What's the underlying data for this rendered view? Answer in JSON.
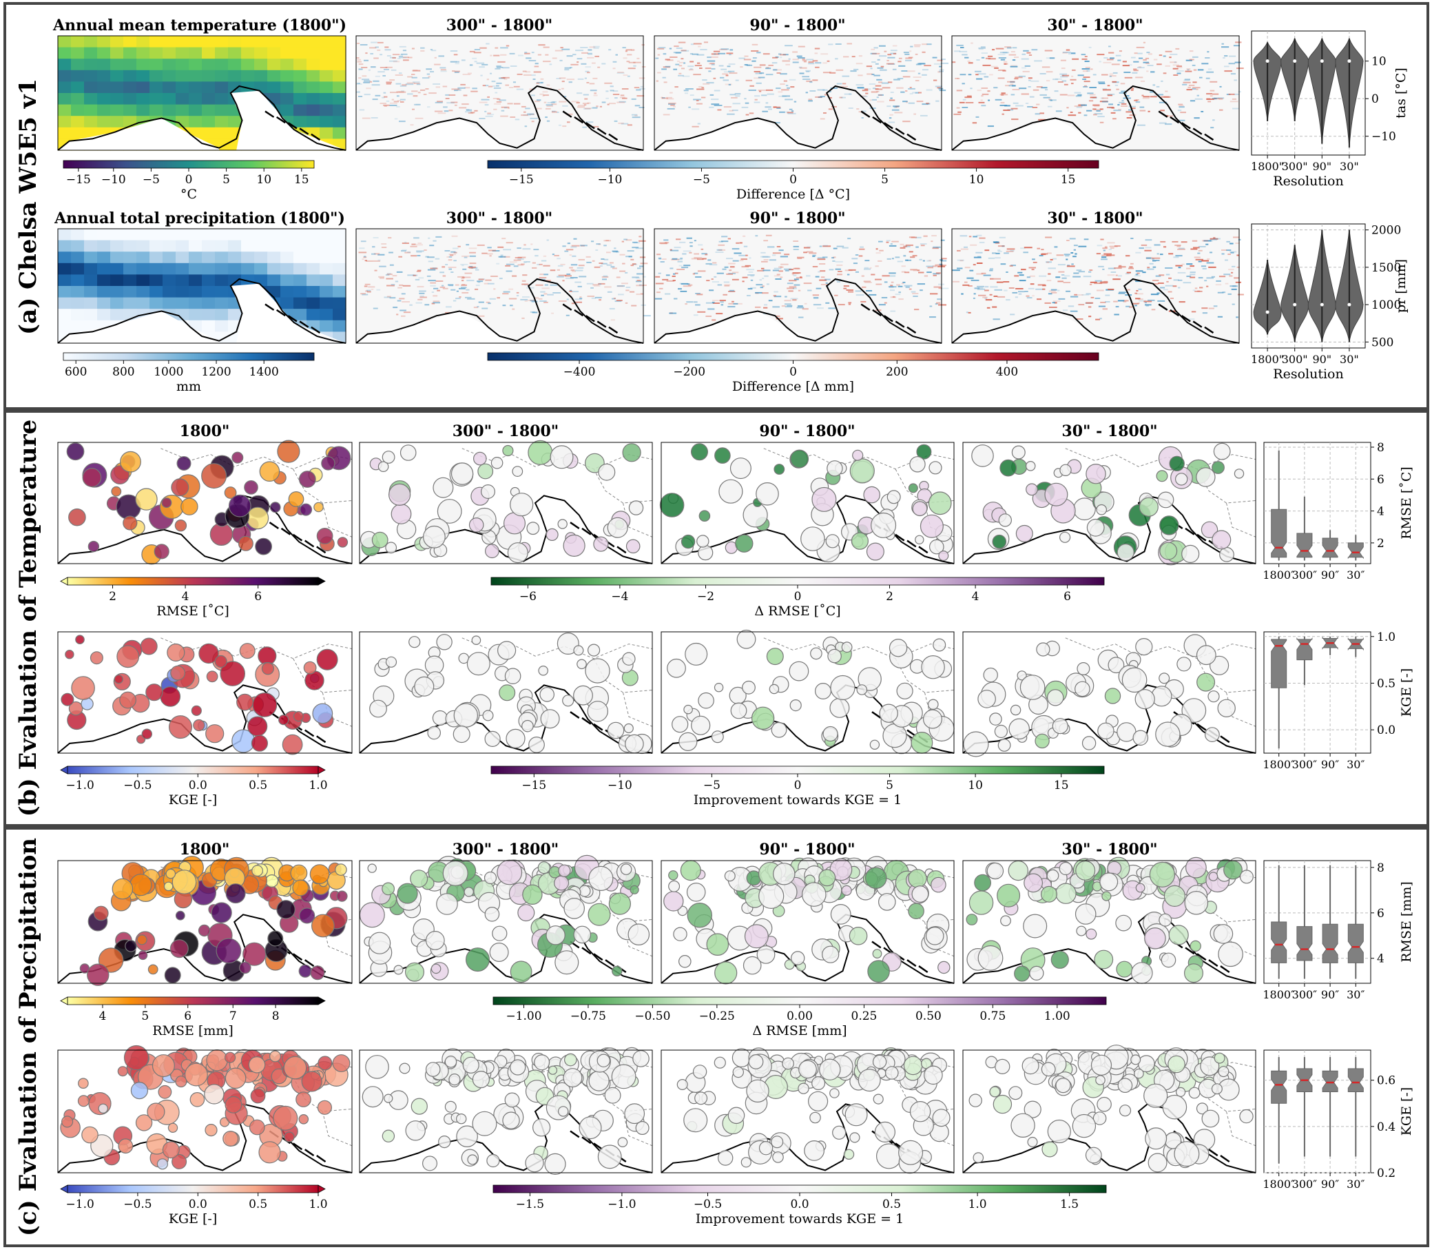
{
  "panels": {
    "a": {
      "label": "(a) Chelsa W5E5 v1",
      "row1": {
        "titles": [
          "Annual mean temperature (1800\")",
          "300\" - 1800\"",
          "90\" - 1800\"",
          "30\" - 1800\""
        ],
        "cbar_main": {
          "label": "°C",
          "ticks": [
            "−15",
            "−10",
            "−5",
            "0",
            "5",
            "10",
            "15"
          ],
          "colors": [
            "#440154",
            "#3b528b",
            "#21918c",
            "#5ec962",
            "#fde725"
          ]
        },
        "cbar_diff": {
          "label": "Difference [Δ °C]",
          "ticks": [
            "−15",
            "−10",
            "−5",
            "0",
            "5",
            "10",
            "15"
          ],
          "colors": [
            "#08306b",
            "#2166ac",
            "#92c5de",
            "#f7f7f7",
            "#f4a582",
            "#b2182b",
            "#67001f"
          ]
        },
        "violin": {
          "ylabel": "tas [°C]",
          "xlabel": "Resolution",
          "yticks": [
            "10",
            "0",
            "−10"
          ],
          "xticks": [
            "1800\"",
            "300\"",
            "90\"",
            "30\""
          ]
        }
      },
      "row2": {
        "titles": [
          "Annual total precipitation (1800\")",
          "300\" - 1800\"",
          "90\" - 1800\"",
          "30\" - 1800\""
        ],
        "cbar_main": {
          "label": "mm",
          "ticks": [
            "600",
            "800",
            "1000",
            "1200",
            "1400"
          ],
          "colors": [
            "#f7fbff",
            "#c6dbef",
            "#6baed6",
            "#2171b5",
            "#08306b"
          ]
        },
        "cbar_diff": {
          "label": "Difference [Δ mm]",
          "ticks": [
            "−400",
            "−200",
            "0",
            "200",
            "400"
          ],
          "colors": [
            "#08306b",
            "#2166ac",
            "#92c5de",
            "#f7f7f7",
            "#f4a582",
            "#b2182b",
            "#67001f"
          ]
        },
        "violin": {
          "ylabel": "pr [mm]",
          "xlabel": "Resolution",
          "yticks": [
            "2000",
            "1500",
            "1000",
            "500"
          ],
          "xticks": [
            "1800\"",
            "300\"",
            "90\"",
            "30\""
          ]
        }
      }
    },
    "b": {
      "label": "(b) Evaluation of Temperature",
      "row1": {
        "titles": [
          "1800\"",
          "300\" - 1800\"",
          "90\" - 1800\"",
          "30\" - 1800\""
        ],
        "cbar_main": {
          "label": "RMSE [˚C]",
          "ticks": [
            "2",
            "4",
            "6"
          ],
          "colors": [
            "#fcffa4",
            "#f98e09",
            "#bc3754",
            "#57106e",
            "#000004"
          ]
        },
        "cbar_diff": {
          "label": "Δ RMSE [˚C]",
          "ticks": [
            "−6",
            "−4",
            "−2",
            "0",
            "2",
            "4",
            "6"
          ],
          "colors": [
            "#00441b",
            "#5aae61",
            "#d9f0d3",
            "#f7f7f7",
            "#e7d4e8",
            "#9970ab",
            "#40004b"
          ]
        },
        "box": {
          "ylabel": "RMSE [˚C]",
          "yticks": [
            "8",
            "6",
            "4",
            "2"
          ],
          "xticks": [
            "1800″",
            "300″",
            "90″",
            "30″"
          ]
        }
      },
      "row2": {
        "titles": [
          "",
          "",
          "",
          ""
        ],
        "cbar_main": {
          "label": "KGE [-]",
          "ticks": [
            "−1.0",
            "−0.5",
            "0.0",
            "0.5",
            "1.0"
          ],
          "colors": [
            "#3b4cc0",
            "#aac7fd",
            "#f2f0ef",
            "#f7a889",
            "#b40426"
          ]
        },
        "cbar_diff": {
          "label": "Improvement towards KGE = 1",
          "ticks": [
            "−15",
            "−10",
            "−5",
            "0",
            "5",
            "10",
            "15"
          ],
          "colors": [
            "#40004b",
            "#9970ab",
            "#e7d4e8",
            "#f7f7f7",
            "#d9f0d3",
            "#5aae61",
            "#00441b"
          ]
        },
        "box": {
          "ylabel": "KGE [-]",
          "yticks": [
            "1.0",
            "0.5",
            "0.0"
          ],
          "xticks": [
            "1800″",
            "300″",
            "90″",
            "30″"
          ]
        }
      }
    },
    "c": {
      "label": "(c) Evaluation of Precipitation",
      "row1": {
        "titles": [
          "1800\"",
          "300\" - 1800\"",
          "90\" - 1800\"",
          "30\" - 1800\""
        ],
        "cbar_main": {
          "label": "RMSE [mm]",
          "ticks": [
            "4",
            "5",
            "6",
            "7",
            "8"
          ],
          "colors": [
            "#fcffa4",
            "#f98e09",
            "#bc3754",
            "#57106e",
            "#000004"
          ]
        },
        "cbar_diff": {
          "label": "Δ RMSE [mm]",
          "ticks": [
            "−1.00",
            "−0.75",
            "−0.50",
            "−0.25",
            "0.00",
            "0.25",
            "0.50",
            "0.75",
            "1.00"
          ],
          "colors": [
            "#00441b",
            "#5aae61",
            "#d9f0d3",
            "#f7f7f7",
            "#e7d4e8",
            "#9970ab",
            "#40004b"
          ]
        },
        "box": {
          "ylabel": "RMSE [mm]",
          "yticks": [
            "8",
            "6",
            "4"
          ],
          "xticks": [
            "1800″",
            "300″",
            "90″",
            "30″"
          ]
        }
      },
      "row2": {
        "titles": [
          "",
          "",
          "",
          ""
        ],
        "cbar_main": {
          "label": "KGE [-]",
          "ticks": [
            "−1.0",
            "−0.5",
            "0.0",
            "0.5",
            "1.0"
          ],
          "colors": [
            "#3b4cc0",
            "#aac7fd",
            "#f2f0ef",
            "#f7a889",
            "#b40426"
          ]
        },
        "cbar_diff": {
          "label": "Improvement towards KGE = 1",
          "ticks": [
            "−1.5",
            "−1.0",
            "−0.5",
            "0.0",
            "0.5",
            "1.0",
            "1.5"
          ],
          "colors": [
            "#40004b",
            "#9970ab",
            "#e7d4e8",
            "#f7f7f7",
            "#d9f0d3",
            "#5aae61",
            "#00441b"
          ]
        },
        "box": {
          "ylabel": "KGE [-]",
          "yticks": [
            "0.6",
            "0.4",
            "0.2"
          ],
          "xticks": [
            "1800″",
            "300″",
            "90″",
            "30″"
          ]
        }
      }
    }
  },
  "chart_data": [
    {
      "type": "violin",
      "panel": "a-row1",
      "ylabel": "tas [°C]",
      "xlabel": "Resolution",
      "categories": [
        "1800\"",
        "300\"",
        "90\"",
        "30\""
      ],
      "ylim": [
        -15,
        18
      ],
      "min": [
        -6,
        -6,
        -12,
        -13
      ],
      "max": [
        15,
        16,
        16,
        16
      ],
      "median": [
        10,
        10,
        10,
        10
      ]
    },
    {
      "type": "violin",
      "panel": "a-row2",
      "ylabel": "pr [mm]",
      "xlabel": "Resolution",
      "categories": [
        "1800\"",
        "300\"",
        "90\"",
        "30\""
      ],
      "ylim": [
        420,
        2080
      ],
      "min": [
        600,
        500,
        500,
        500
      ],
      "max": [
        1600,
        1800,
        2000,
        2000
      ],
      "median": [
        900,
        1000,
        1000,
        1000
      ]
    },
    {
      "type": "box",
      "panel": "b-row1",
      "ylabel": "RMSE [˚C]",
      "categories": [
        "1800″",
        "300″",
        "90″",
        "30″"
      ],
      "ylim": [
        0.7,
        8.3
      ],
      "q1": [
        1.1,
        1.1,
        1.1,
        1.1
      ],
      "median": [
        1.7,
        1.5,
        1.5,
        1.4
      ],
      "q3": [
        4.1,
        2.6,
        2.3,
        2.0
      ],
      "wlow": [
        0.9,
        0.9,
        0.9,
        0.9
      ],
      "whigh": [
        7.8,
        4.9,
        2.8,
        2.5
      ]
    },
    {
      "type": "box",
      "panel": "b-row2",
      "ylabel": "KGE [-]",
      "categories": [
        "1800″",
        "300″",
        "90″",
        "30″"
      ],
      "ylim": [
        -0.25,
        1.05
      ],
      "q1": [
        0.45,
        0.75,
        0.88,
        0.87
      ],
      "median": [
        0.9,
        0.92,
        0.93,
        0.92
      ],
      "q3": [
        0.97,
        0.97,
        0.98,
        0.97
      ],
      "wlow": [
        -0.2,
        0.48,
        0.8,
        0.78
      ],
      "whigh": [
        1.0,
        1.0,
        1.0,
        1.0
      ]
    },
    {
      "type": "box",
      "panel": "c-row1",
      "ylabel": "RMSE [mm]",
      "categories": [
        "1800″",
        "300″",
        "90″",
        "30″"
      ],
      "ylim": [
        2.9,
        8.3
      ],
      "q1": [
        3.8,
        3.9,
        3.8,
        3.8
      ],
      "median": [
        4.6,
        4.4,
        4.4,
        4.5
      ],
      "q3": [
        5.6,
        5.4,
        5.5,
        5.5
      ],
      "wlow": [
        3.1,
        3.1,
        3.1,
        3.1
      ],
      "whigh": [
        8.1,
        8.1,
        8.1,
        8.1
      ]
    },
    {
      "type": "box",
      "panel": "c-row2",
      "ylabel": "KGE [-]",
      "categories": [
        "1800″",
        "300″",
        "90″",
        "30″"
      ],
      "ylim": [
        0.2,
        0.73
      ],
      "q1": [
        0.5,
        0.55,
        0.55,
        0.55
      ],
      "median": [
        0.58,
        0.6,
        0.59,
        0.59
      ],
      "q3": [
        0.64,
        0.65,
        0.64,
        0.65
      ],
      "wlow": [
        0.24,
        0.27,
        0.27,
        0.27
      ],
      "whigh": [
        0.7,
        0.7,
        0.7,
        0.7
      ]
    }
  ]
}
